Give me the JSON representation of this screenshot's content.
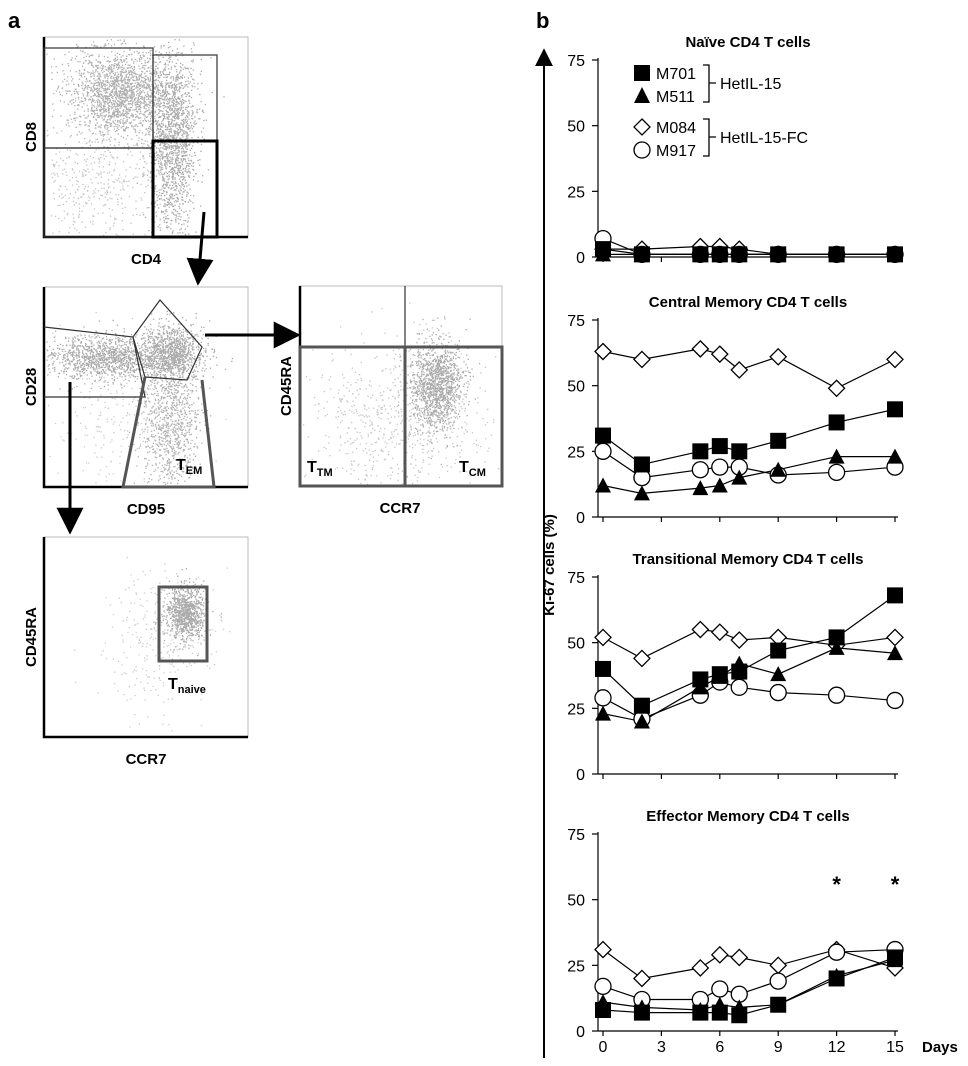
{
  "panel_labels": {
    "a": "a",
    "b": "b"
  },
  "flow": {
    "cd4cd8": {
      "x_label": "CD4",
      "y_label": "CD8"
    },
    "cd95cd28": {
      "x_label": "CD95",
      "y_label": "CD28",
      "gate_label": "T",
      "gate_sub": "EM"
    },
    "ccr7cd45ra_mem": {
      "x_label": "CCR7",
      "y_label": "CD45RA",
      "gate_left": "T",
      "gate_left_sub": "TM",
      "gate_right": "T",
      "gate_right_sub": "CM"
    },
    "ccr7cd45ra_naive": {
      "x_label": "CCR7",
      "y_label": "CD45RA",
      "gate_label": "T",
      "gate_sub": "naive"
    }
  },
  "legend": {
    "entries": [
      {
        "id": "M701",
        "label": "M701",
        "marker": "square-filled"
      },
      {
        "id": "M511",
        "label": "M511",
        "marker": "triangle-filled"
      },
      {
        "id": "M084",
        "label": "M084",
        "marker": "diamond-open"
      },
      {
        "id": "M917",
        "label": "M917",
        "marker": "circle-open"
      }
    ],
    "groups": [
      {
        "label": "HetIL-15",
        "members": [
          "M701",
          "M511"
        ]
      },
      {
        "label": "HetIL-15-FC",
        "members": [
          "M084",
          "M917"
        ]
      }
    ]
  },
  "shared_axes": {
    "ylabel": "Ki-67 cells (%)",
    "xlabel": "Days",
    "x_ticks": [
      0,
      3,
      6,
      9,
      12,
      15
    ],
    "y_ticks": [
      0,
      25,
      50,
      75
    ],
    "xlim": [
      0,
      15
    ],
    "ylim": [
      0,
      75
    ]
  },
  "chart_data": [
    {
      "type": "line",
      "title": "Naïve CD4 T cells",
      "series": [
        {
          "name": "M701",
          "x": [
            0,
            2,
            5,
            6,
            7,
            9,
            12,
            15
          ],
          "y": [
            3,
            1,
            1,
            1,
            1,
            1,
            1,
            1
          ]
        },
        {
          "name": "M511",
          "x": [
            0,
            2,
            5,
            6,
            7,
            9,
            12,
            15
          ],
          "y": [
            1,
            1,
            1,
            1,
            1,
            1,
            1,
            1
          ]
        },
        {
          "name": "M084",
          "x": [
            0,
            2,
            5,
            6,
            7,
            9,
            12,
            15
          ],
          "y": [
            3,
            3,
            4,
            4,
            3,
            1,
            1,
            1
          ]
        },
        {
          "name": "M917",
          "x": [
            0,
            2,
            5,
            6,
            7,
            9,
            12,
            15
          ],
          "y": [
            7,
            1,
            1,
            1,
            1,
            1,
            1,
            1
          ]
        }
      ]
    },
    {
      "type": "line",
      "title": "Central Memory CD4 T cells",
      "series": [
        {
          "name": "M701",
          "x": [
            0,
            2,
            5,
            6,
            7,
            9,
            12,
            15
          ],
          "y": [
            31,
            20,
            25,
            27,
            25,
            29,
            36,
            41
          ]
        },
        {
          "name": "M511",
          "x": [
            0,
            2,
            5,
            6,
            7,
            9,
            12,
            15
          ],
          "y": [
            12,
            9,
            11,
            12,
            15,
            18,
            23,
            23
          ]
        },
        {
          "name": "M084",
          "x": [
            0,
            2,
            5,
            6,
            7,
            9,
            12,
            15
          ],
          "y": [
            63,
            60,
            64,
            62,
            56,
            61,
            49,
            60
          ]
        },
        {
          "name": "M917",
          "x": [
            0,
            2,
            5,
            6,
            7,
            9,
            12,
            15
          ],
          "y": [
            25,
            15,
            18,
            19,
            19,
            16,
            17,
            19
          ]
        }
      ]
    },
    {
      "type": "line",
      "title": "Transitional Memory CD4 T cells",
      "series": [
        {
          "name": "M701",
          "x": [
            0,
            2,
            5,
            6,
            7,
            9,
            12,
            15
          ],
          "y": [
            40,
            26,
            36,
            38,
            39,
            47,
            52,
            68
          ]
        },
        {
          "name": "M511",
          "x": [
            0,
            2,
            5,
            6,
            7,
            9,
            12,
            15
          ],
          "y": [
            23,
            20,
            33,
            37,
            42,
            38,
            48,
            46
          ]
        },
        {
          "name": "M084",
          "x": [
            0,
            2,
            5,
            6,
            7,
            9,
            12,
            15
          ],
          "y": [
            52,
            44,
            55,
            54,
            51,
            52,
            49,
            52
          ]
        },
        {
          "name": "M917",
          "x": [
            0,
            2,
            5,
            6,
            7,
            9,
            12,
            15
          ],
          "y": [
            29,
            21,
            30,
            35,
            33,
            31,
            30,
            28
          ]
        }
      ]
    },
    {
      "type": "line",
      "title": "Effector Memory CD4 T cells",
      "annotations": [
        {
          "text": "*",
          "x": 12
        },
        {
          "text": "*",
          "x": 15
        }
      ],
      "series": [
        {
          "name": "M701",
          "x": [
            0,
            2,
            5,
            6,
            7,
            9,
            12,
            15
          ],
          "y": [
            8,
            7,
            7,
            7,
            6,
            10,
            20,
            28
          ]
        },
        {
          "name": "M511",
          "x": [
            0,
            2,
            5,
            6,
            7,
            9,
            12,
            15
          ],
          "y": [
            11,
            9,
            8,
            10,
            9,
            10,
            21,
            27
          ]
        },
        {
          "name": "M084",
          "x": [
            0,
            2,
            5,
            6,
            7,
            9,
            12,
            15
          ],
          "y": [
            31,
            20,
            24,
            29,
            28,
            25,
            31,
            24
          ]
        },
        {
          "name": "M917",
          "x": [
            0,
            2,
            5,
            6,
            7,
            9,
            12,
            15
          ],
          "y": [
            17,
            12,
            12,
            16,
            14,
            19,
            30,
            31
          ]
        }
      ]
    }
  ]
}
